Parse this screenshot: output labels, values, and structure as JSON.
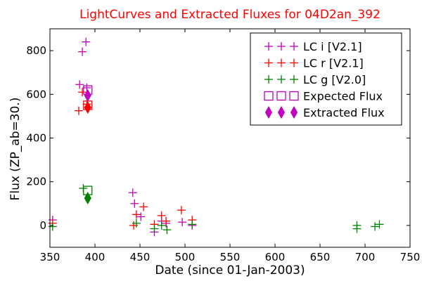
{
  "chart_data": {
    "type": "scatter",
    "title": "LightCurves and Extracted Fluxes for 04D2an_392",
    "title_color": "#ff0000",
    "xlabel": "Date (since 01-Jan-2003)",
    "ylabel": "Flux (ZP_ab=30.)",
    "xlim": [
      350,
      750
    ],
    "ylim": [
      -100,
      900
    ],
    "xticks": [
      350,
      400,
      450,
      500,
      550,
      600,
      650,
      700,
      750
    ],
    "yticks": [
      0,
      200,
      400,
      600,
      800
    ],
    "grid": false,
    "legend_position": "top-right",
    "series": [
      {
        "name": "LC i [V2.1]",
        "marker": "plus",
        "color": "#bf00bf",
        "points": [
          [
            353,
            25
          ],
          [
            386,
            795
          ],
          [
            390,
            840
          ],
          [
            383,
            645
          ],
          [
            391,
            630
          ],
          [
            442,
            150
          ],
          [
            444,
            100
          ],
          [
            451,
            40
          ],
          [
            466,
            -30
          ],
          [
            474,
            20
          ],
          [
            479,
            10
          ],
          [
            497,
            15
          ],
          [
            508,
            0
          ]
        ]
      },
      {
        "name": "LC r [V2.1]",
        "marker": "plus",
        "color": "#ff0000",
        "points": [
          [
            353,
            10
          ],
          [
            382,
            525
          ],
          [
            386,
            610
          ],
          [
            391,
            555
          ],
          [
            443,
            0
          ],
          [
            446,
            50
          ],
          [
            454,
            85
          ],
          [
            466,
            5
          ],
          [
            474,
            45
          ],
          [
            479,
            20
          ],
          [
            496,
            70
          ],
          [
            508,
            25
          ]
        ]
      },
      {
        "name": "LC g [V2.0]",
        "marker": "plus",
        "color": "#008000",
        "points": [
          [
            353,
            -5
          ],
          [
            387,
            170
          ],
          [
            446,
            10
          ],
          [
            466,
            -15
          ],
          [
            474,
            0
          ],
          [
            480,
            -20
          ],
          [
            508,
            5
          ],
          [
            691,
            0
          ],
          [
            691,
            -15
          ],
          [
            711,
            -5
          ],
          [
            716,
            5
          ]
        ]
      },
      {
        "name": "Expected Flux",
        "marker": "square",
        "color": "#bf00bf",
        "points": [
          [
            392,
            620
          ],
          [
            392,
            550
          ]
        ],
        "point_colors": [
          "#bf00bf",
          "#ff0000"
        ],
        "extra_points": [
          [
            392,
            160
          ]
        ],
        "extra_color": "#008000"
      },
      {
        "name": "Extracted Flux",
        "marker": "diamond",
        "color": "#bf00bf",
        "points": [
          [
            392,
            595
          ],
          [
            392,
            540
          ],
          [
            392,
            125
          ]
        ],
        "point_colors": [
          "#bf00bf",
          "#ff0000",
          "#008000"
        ]
      }
    ]
  }
}
